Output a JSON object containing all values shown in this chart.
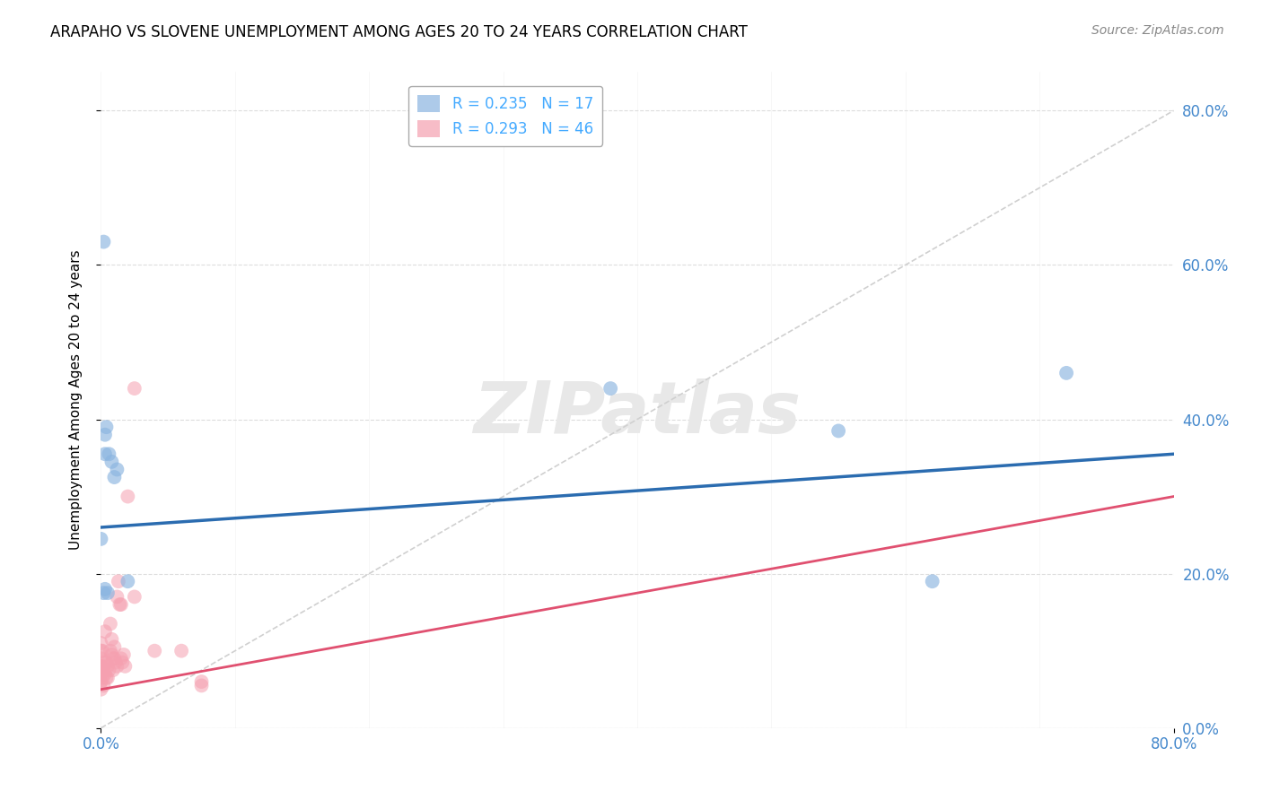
{
  "title": "ARAPAHO VS SLOVENE UNEMPLOYMENT AMONG AGES 20 TO 24 YEARS CORRELATION CHART",
  "source": "Source: ZipAtlas.com",
  "ylabel": "Unemployment Among Ages 20 to 24 years",
  "xlim": [
    0,
    0.8
  ],
  "ylim": [
    0,
    0.85
  ],
  "xtick_vals": [
    0.0,
    0.8
  ],
  "xtick_labels": [
    "0.0%",
    "80.0%"
  ],
  "ytick_vals": [
    0.0,
    0.2,
    0.4,
    0.6,
    0.8
  ],
  "ytick_labels": [
    "0.0%",
    "20.0%",
    "40.0%",
    "60.0%",
    "80.0%"
  ],
  "arapaho_R": 0.235,
  "arapaho_N": 17,
  "slovene_R": 0.293,
  "slovene_N": 46,
  "arapaho_color": "#8AB4E0",
  "slovene_color": "#F5A0B0",
  "arapaho_line_color": "#2B6CB0",
  "slovene_line_color": "#E05070",
  "diagonal_color": "#D0D0D0",
  "watermark_color": "#E8E8E8",
  "background_color": "#FFFFFF",
  "grid_color": "#DDDDDD",
  "tick_color": "#4488CC",
  "arapaho_line_start_y": 0.26,
  "arapaho_line_end_y": 0.355,
  "slovene_line_start_y": 0.05,
  "slovene_line_end_y": 0.3,
  "arapaho_x": [
    0.002,
    0.004,
    0.006,
    0.008,
    0.01,
    0.012,
    0.02,
    0.0,
    0.003,
    0.003,
    0.002,
    0.55,
    0.62,
    0.72,
    0.38,
    0.003,
    0.005
  ],
  "arapaho_y": [
    0.63,
    0.39,
    0.355,
    0.345,
    0.325,
    0.335,
    0.19,
    0.245,
    0.38,
    0.355,
    0.175,
    0.385,
    0.19,
    0.46,
    0.44,
    0.18,
    0.175
  ],
  "slovene_x": [
    0.0,
    0.0,
    0.0,
    0.0,
    0.0,
    0.0,
    0.0,
    0.0,
    0.001,
    0.001,
    0.001,
    0.002,
    0.002,
    0.003,
    0.003,
    0.003,
    0.004,
    0.004,
    0.005,
    0.005,
    0.006,
    0.007,
    0.007,
    0.008,
    0.008,
    0.009,
    0.009,
    0.01,
    0.01,
    0.011,
    0.012,
    0.012,
    0.013,
    0.014,
    0.015,
    0.015,
    0.016,
    0.017,
    0.018,
    0.02,
    0.025,
    0.025,
    0.04,
    0.06,
    0.075,
    0.075
  ],
  "slovene_y": [
    0.05,
    0.06,
    0.07,
    0.075,
    0.08,
    0.09,
    0.1,
    0.11,
    0.065,
    0.08,
    0.1,
    0.055,
    0.075,
    0.07,
    0.085,
    0.125,
    0.065,
    0.085,
    0.065,
    0.08,
    0.075,
    0.1,
    0.135,
    0.095,
    0.115,
    0.075,
    0.09,
    0.09,
    0.105,
    0.085,
    0.08,
    0.17,
    0.19,
    0.16,
    0.09,
    0.16,
    0.085,
    0.095,
    0.08,
    0.3,
    0.17,
    0.44,
    0.1,
    0.1,
    0.055,
    0.06
  ]
}
